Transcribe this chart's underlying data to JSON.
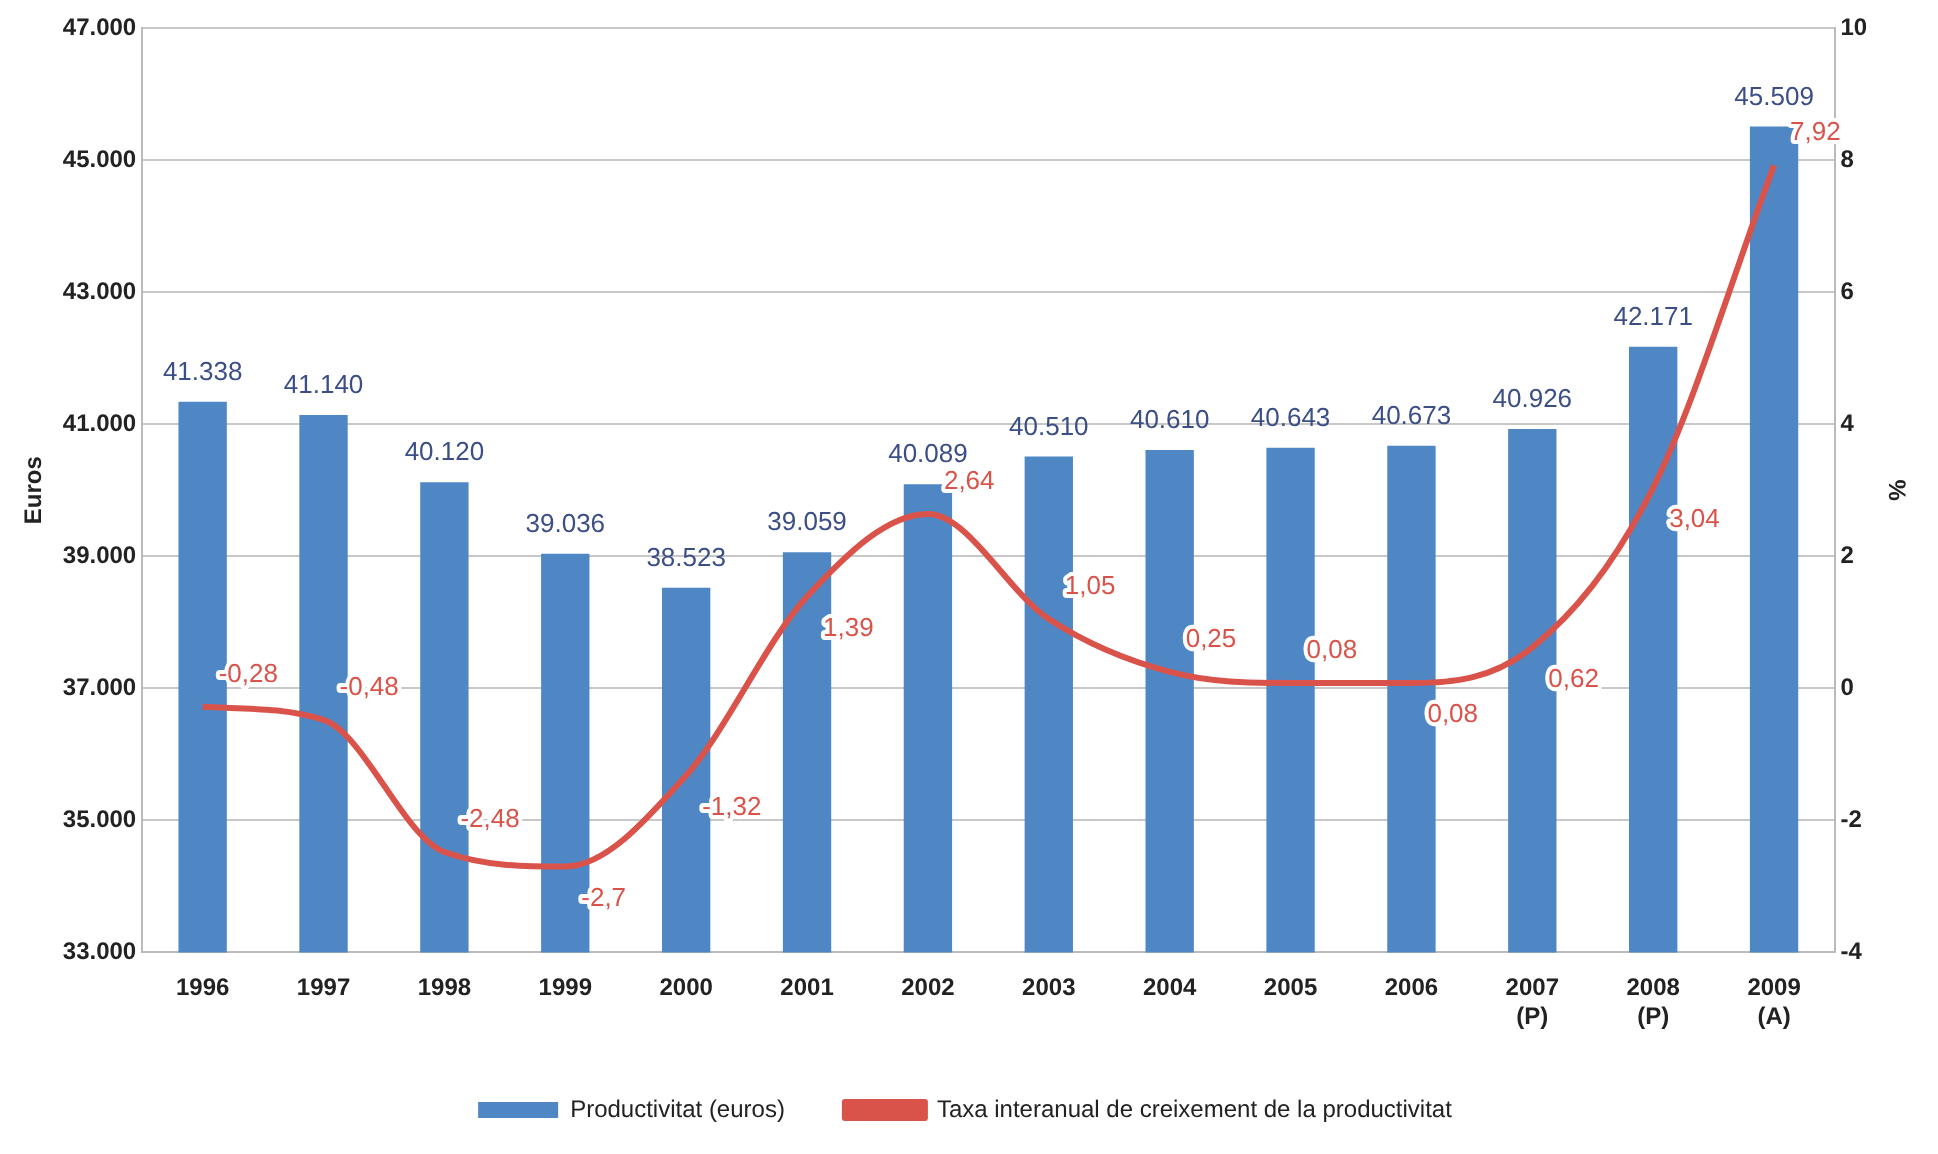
{
  "chart_data": {
    "type": "bar",
    "categories": [
      "1996",
      "1997",
      "1998",
      "1999",
      "2000",
      "2001",
      "2002",
      "2003",
      "2004",
      "2005",
      "2006",
      "2007 (P)",
      "2008 (P)",
      "2009 (A)"
    ],
    "ylabel": "Euros",
    "y2label": "%",
    "series": [
      {
        "name": "Productivitat (euros)",
        "color": "#4f87c5",
        "values": [
          41338,
          41140,
          40120,
          39036,
          38523,
          39059,
          40089,
          40510,
          40610,
          40643,
          40673,
          40926,
          42171,
          45509
        ],
        "value_labels": [
          "41.338",
          "41.140",
          "40.120",
          "39.036",
          "38.523",
          "39.059",
          "40.089",
          "40.510",
          "40.610",
          "40.643",
          "40.673",
          "40.926",
          "42.171",
          "45.509"
        ]
      },
      {
        "name": "Taxa interanual de creixement de la productivitat",
        "type": "line",
        "axis": "y2",
        "color": "#d9534a",
        "values": [
          -0.28,
          -0.48,
          -2.48,
          -2.7,
          -1.32,
          1.39,
          2.64,
          1.05,
          0.25,
          0.08,
          0.08,
          0.62,
          3.04,
          7.92
        ],
        "value_labels": [
          "-0,28",
          "-0,48",
          "-2,48",
          "-2,7",
          "-1,32",
          "1,39",
          "2,64",
          "1,05",
          "0,25",
          "0,08",
          "0,08",
          "0,62",
          "3,04",
          "7,92"
        ]
      }
    ],
    "ylim": [
      33000,
      47000
    ],
    "yticks": [
      {
        "value": 33000,
        "label": "33.000"
      },
      {
        "value": 35000,
        "label": "35.000"
      },
      {
        "value": 37000,
        "label": "37.000"
      },
      {
        "value": 39000,
        "label": "39.000"
      },
      {
        "value": 41000,
        "label": "41.000"
      },
      {
        "value": 43000,
        "label": "43.000"
      },
      {
        "value": 45000,
        "label": "45.000"
      },
      {
        "value": 47000,
        "label": "47.000"
      }
    ],
    "y2lim": [
      -4,
      10
    ],
    "y2ticks": [
      -4,
      -2,
      0,
      2,
      4,
      6,
      8,
      10
    ],
    "grid": "y",
    "legend": "bottom",
    "marker": "none",
    "line_style": "solid"
  }
}
